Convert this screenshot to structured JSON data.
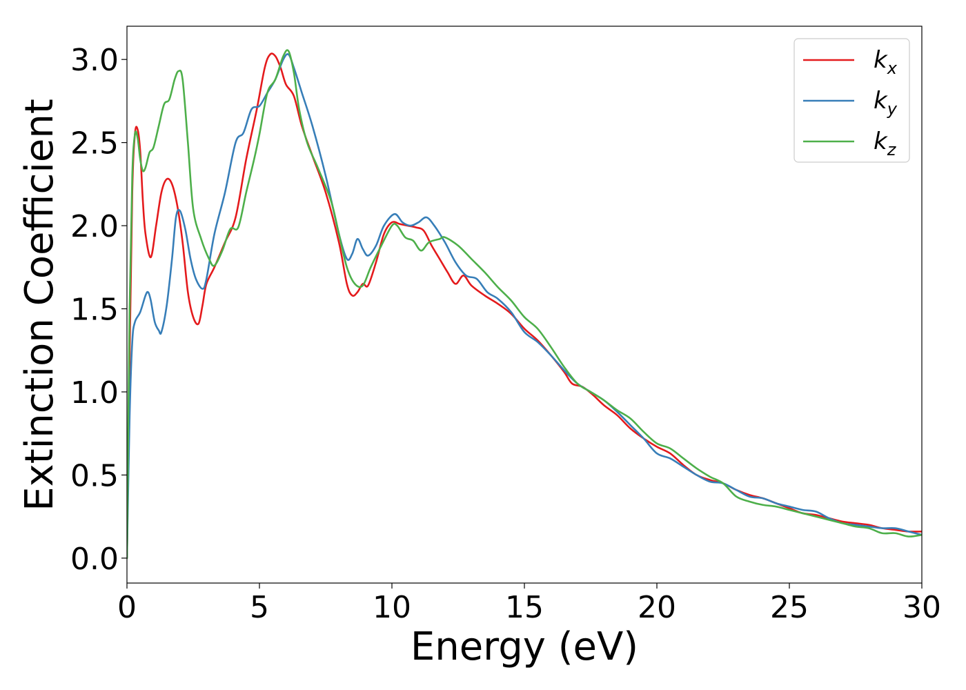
{
  "chart_data": {
    "type": "line",
    "title": "",
    "xlabel": "Energy (eV)",
    "ylabel": "Extinction Coefficient",
    "xlim": [
      0,
      30
    ],
    "ylim": [
      -0.15,
      3.2
    ],
    "xticks": [
      0,
      5,
      10,
      15,
      20,
      25,
      30
    ],
    "xtick_labels": [
      "0",
      "5",
      "10",
      "15",
      "20",
      "25",
      "30"
    ],
    "yticks": [
      0.0,
      0.5,
      1.0,
      1.5,
      2.0,
      2.5,
      3.0
    ],
    "ytick_labels": [
      "0.0",
      "0.5",
      "1.0",
      "1.5",
      "2.0",
      "2.5",
      "3.0"
    ],
    "grid": false,
    "legend_position": "top-right",
    "series": [
      {
        "name": "kx",
        "legend_base": "k",
        "legend_sub": "x",
        "color": "#e41a1c",
        "x": [
          0,
          0.1,
          0.2,
          0.3,
          0.4,
          0.5,
          0.6,
          0.7,
          0.9,
          1.1,
          1.3,
          1.5,
          1.7,
          1.9,
          2.1,
          2.3,
          2.5,
          2.7,
          2.85,
          3.0,
          3.3,
          3.7,
          4.1,
          4.5,
          4.9,
          5.2,
          5.4,
          5.6,
          5.8,
          6.0,
          6.3,
          6.6,
          7.0,
          7.5,
          8.0,
          8.3,
          8.5,
          8.7,
          8.9,
          9.1,
          9.4,
          9.7,
          10.0,
          10.3,
          10.6,
          10.9,
          11.2,
          11.5,
          11.8,
          12.1,
          12.4,
          12.7,
          13.0,
          13.5,
          14.0,
          14.5,
          15.0,
          15.5,
          16.0,
          16.5,
          16.8,
          17.2,
          17.6,
          18.0,
          18.5,
          19.0,
          19.5,
          20.0,
          20.5,
          21.0,
          21.5,
          22.0,
          22.5,
          23.0,
          23.5,
          24.0,
          24.5,
          25.0,
          25.5,
          26.0,
          26.5,
          27.0,
          27.5,
          28.0,
          28.5,
          29.0,
          29.5,
          30.0
        ],
        "y": [
          0.0,
          1.2,
          2.2,
          2.55,
          2.58,
          2.45,
          2.15,
          1.95,
          1.81,
          2.0,
          2.2,
          2.28,
          2.25,
          2.12,
          1.9,
          1.6,
          1.45,
          1.41,
          1.52,
          1.65,
          1.75,
          1.9,
          2.05,
          2.4,
          2.7,
          2.95,
          3.03,
          3.02,
          2.95,
          2.85,
          2.78,
          2.6,
          2.42,
          2.2,
          1.9,
          1.65,
          1.58,
          1.6,
          1.65,
          1.64,
          1.78,
          1.95,
          2.02,
          2.01,
          2.0,
          1.99,
          1.97,
          1.88,
          1.8,
          1.72,
          1.65,
          1.7,
          1.64,
          1.58,
          1.53,
          1.47,
          1.38,
          1.31,
          1.22,
          1.12,
          1.05,
          1.03,
          0.98,
          0.92,
          0.86,
          0.78,
          0.72,
          0.67,
          0.63,
          0.56,
          0.5,
          0.47,
          0.45,
          0.41,
          0.38,
          0.36,
          0.33,
          0.3,
          0.27,
          0.26,
          0.24,
          0.22,
          0.21,
          0.2,
          0.18,
          0.17,
          0.16,
          0.16
        ]
      },
      {
        "name": "ky",
        "legend_base": "k",
        "legend_sub": "y",
        "color": "#377eb8",
        "x": [
          0,
          0.1,
          0.2,
          0.3,
          0.5,
          0.7,
          0.8,
          0.9,
          1.05,
          1.2,
          1.3,
          1.5,
          1.7,
          1.85,
          2.0,
          2.2,
          2.4,
          2.6,
          2.85,
          3.0,
          3.3,
          3.7,
          4.1,
          4.4,
          4.7,
          5.0,
          5.3,
          5.6,
          5.9,
          6.1,
          6.3,
          6.6,
          7.0,
          7.5,
          8.0,
          8.3,
          8.5,
          8.7,
          8.9,
          9.1,
          9.4,
          9.7,
          10.1,
          10.4,
          10.7,
          11.0,
          11.3,
          11.6,
          12.0,
          12.4,
          12.8,
          13.2,
          13.6,
          14.0,
          14.5,
          15.0,
          15.5,
          16.0,
          16.5,
          17.0,
          17.5,
          18.0,
          18.5,
          19.0,
          19.5,
          20.0,
          20.5,
          21.0,
          21.5,
          22.0,
          22.5,
          23.0,
          23.5,
          24.0,
          24.5,
          25.0,
          25.5,
          26.0,
          26.5,
          27.0,
          27.5,
          28.0,
          28.5,
          29.0,
          29.5,
          30.0
        ],
        "y": [
          0.0,
          0.85,
          1.3,
          1.42,
          1.48,
          1.58,
          1.6,
          1.55,
          1.42,
          1.37,
          1.36,
          1.52,
          1.8,
          2.05,
          2.09,
          1.98,
          1.8,
          1.68,
          1.62,
          1.68,
          1.95,
          2.2,
          2.5,
          2.56,
          2.7,
          2.72,
          2.8,
          2.88,
          3.0,
          3.03,
          2.95,
          2.8,
          2.6,
          2.3,
          1.95,
          1.8,
          1.83,
          1.92,
          1.86,
          1.82,
          1.88,
          2.0,
          2.07,
          2.02,
          2.0,
          2.02,
          2.05,
          2.0,
          1.9,
          1.78,
          1.7,
          1.68,
          1.6,
          1.56,
          1.48,
          1.36,
          1.3,
          1.22,
          1.13,
          1.05,
          1.0,
          0.95,
          0.88,
          0.8,
          0.72,
          0.63,
          0.6,
          0.55,
          0.5,
          0.46,
          0.45,
          0.41,
          0.37,
          0.36,
          0.33,
          0.31,
          0.29,
          0.28,
          0.24,
          0.21,
          0.2,
          0.19,
          0.18,
          0.18,
          0.16,
          0.14
        ]
      },
      {
        "name": "kz",
        "legend_base": "k",
        "legend_sub": "z",
        "color": "#4daf4a",
        "x": [
          0,
          0.1,
          0.2,
          0.3,
          0.4,
          0.5,
          0.6,
          0.7,
          0.85,
          1.0,
          1.2,
          1.4,
          1.6,
          1.8,
          1.95,
          2.1,
          2.3,
          2.5,
          2.8,
          3.1,
          3.3,
          3.6,
          3.9,
          4.2,
          4.5,
          4.8,
          5.0,
          5.3,
          5.6,
          5.9,
          6.1,
          6.3,
          6.5,
          6.8,
          7.2,
          7.7,
          8.0,
          8.3,
          8.6,
          8.9,
          9.2,
          9.6,
          10.0,
          10.2,
          10.5,
          10.8,
          11.1,
          11.4,
          11.8,
          12.0,
          12.5,
          13.0,
          13.5,
          14.0,
          14.5,
          15.0,
          15.5,
          16.0,
          16.5,
          17.0,
          17.5,
          18.0,
          18.5,
          19.0,
          19.5,
          20.0,
          20.5,
          21.0,
          21.5,
          22.0,
          22.5,
          23.0,
          23.5,
          24.0,
          24.5,
          25.0,
          25.5,
          26.0,
          26.5,
          27.0,
          27.5,
          28.0,
          28.5,
          29.0,
          29.5,
          30.0
        ],
        "y": [
          0.0,
          1.5,
          2.3,
          2.55,
          2.53,
          2.4,
          2.33,
          2.35,
          2.44,
          2.47,
          2.6,
          2.73,
          2.76,
          2.88,
          2.93,
          2.88,
          2.5,
          2.1,
          1.92,
          1.8,
          1.76,
          1.85,
          1.98,
          1.99,
          2.2,
          2.4,
          2.55,
          2.8,
          2.88,
          3.02,
          3.05,
          2.92,
          2.7,
          2.5,
          2.35,
          2.15,
          1.95,
          1.75,
          1.65,
          1.64,
          1.75,
          1.88,
          2.0,
          2.0,
          1.93,
          1.91,
          1.85,
          1.9,
          1.92,
          1.93,
          1.88,
          1.8,
          1.72,
          1.63,
          1.55,
          1.45,
          1.38,
          1.27,
          1.15,
          1.05,
          1.0,
          0.95,
          0.89,
          0.84,
          0.76,
          0.69,
          0.66,
          0.6,
          0.54,
          0.49,
          0.45,
          0.37,
          0.34,
          0.32,
          0.31,
          0.29,
          0.27,
          0.25,
          0.23,
          0.21,
          0.19,
          0.18,
          0.15,
          0.15,
          0.13,
          0.14
        ]
      }
    ]
  }
}
